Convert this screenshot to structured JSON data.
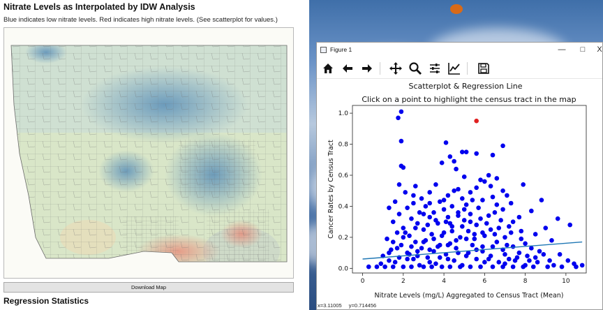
{
  "app": {
    "title": "Nitrate Levels as Interpolated by IDW Analysis",
    "subtitle": "Blue indicates low nitrate levels. Red indicates high nitrate levels. (See scatterplot for values.)",
    "download_label": "Download Map",
    "regression_heading": "Regression Statistics"
  },
  "figure_window": {
    "title": "Figure 1",
    "controls": {
      "minimize": "—",
      "maximize": "□",
      "close": "X"
    },
    "toolbar": [
      "home-icon",
      "back-arrow-icon",
      "forward-arrow-icon",
      "pan-icon",
      "zoom-icon",
      "configure-subplots-icon",
      "edit-axis-icon",
      "save-icon"
    ],
    "coord_x": "x=3.11005",
    "coord_y": "y=0.714456"
  },
  "colors": {
    "points": "#0000ee",
    "highlight": "#e02020",
    "regression": "#1f77b4"
  },
  "chart_data": {
    "type": "scatter",
    "title": "Scatterplot & Regression Line",
    "subtitle": "Click on a point to highlight the census tract in the map",
    "xlabel": "Nitrate Levels (mg/L) Aggregated to Census Tract (Mean)",
    "ylabel": "Cancer Rates by Census Tract",
    "xlim": [
      -0.5,
      11.0
    ],
    "ylim": [
      -0.03,
      1.05
    ],
    "xticks": [
      0,
      2,
      4,
      6,
      8,
      10
    ],
    "yticks": [
      0.0,
      0.2,
      0.4,
      0.6,
      0.8,
      1.0
    ],
    "highlight_point": {
      "x": 5.6,
      "y": 0.95
    },
    "regression": {
      "x": [
        0,
        10.8
      ],
      "y": [
        0.06,
        0.17
      ]
    },
    "points": [
      [
        1.9,
        1.01
      ],
      [
        1.75,
        0.97
      ],
      [
        1.9,
        0.82
      ],
      [
        4.1,
        0.81
      ],
      [
        6.9,
        0.79
      ],
      [
        4.9,
        0.75
      ],
      [
        5.1,
        0.75
      ],
      [
        5.6,
        0.74
      ],
      [
        6.4,
        0.73
      ],
      [
        4.3,
        0.72
      ],
      [
        4.5,
        0.69
      ],
      [
        3.9,
        0.68
      ],
      [
        1.9,
        0.66
      ],
      [
        2.0,
        0.65
      ],
      [
        4.6,
        0.64
      ],
      [
        6.2,
        0.6
      ],
      [
        5.0,
        0.59
      ],
      [
        6.6,
        0.58
      ],
      [
        5.8,
        0.57
      ],
      [
        6.0,
        0.56
      ],
      [
        3.6,
        0.54
      ],
      [
        1.8,
        0.54
      ],
      [
        7.9,
        0.54
      ],
      [
        5.6,
        0.52
      ],
      [
        6.3,
        0.53
      ],
      [
        2.6,
        0.53
      ],
      [
        4.7,
        0.51
      ],
      [
        6.9,
        0.5
      ],
      [
        5.3,
        0.49
      ],
      [
        3.3,
        0.49
      ],
      [
        2.1,
        0.49
      ],
      [
        7.1,
        0.47
      ],
      [
        4.2,
        0.47
      ],
      [
        6.4,
        0.46
      ],
      [
        2.9,
        0.45
      ],
      [
        4.9,
        0.45
      ],
      [
        8.8,
        0.44
      ],
      [
        5.9,
        0.44
      ],
      [
        3.8,
        0.43
      ],
      [
        1.6,
        0.43
      ],
      [
        7.3,
        0.42
      ],
      [
        2.5,
        0.42
      ],
      [
        5.1,
        0.41
      ],
      [
        6.6,
        0.41
      ],
      [
        4.4,
        0.4
      ],
      [
        3.1,
        0.4
      ],
      [
        1.3,
        0.39
      ],
      [
        2.2,
        0.39
      ],
      [
        5.7,
        0.39
      ],
      [
        6.9,
        0.38
      ],
      [
        4.0,
        0.38
      ],
      [
        8.3,
        0.37
      ],
      [
        3.5,
        0.36
      ],
      [
        2.8,
        0.36
      ],
      [
        5.3,
        0.35
      ],
      [
        1.8,
        0.35
      ],
      [
        6.2,
        0.34
      ],
      [
        4.7,
        0.34
      ],
      [
        7.7,
        0.33
      ],
      [
        3.3,
        0.33
      ],
      [
        2.4,
        0.32
      ],
      [
        9.6,
        0.32
      ],
      [
        5.0,
        0.31
      ],
      [
        6.8,
        0.31
      ],
      [
        4.1,
        0.3
      ],
      [
        1.5,
        0.3
      ],
      [
        10.2,
        0.28
      ],
      [
        3.7,
        0.29
      ],
      [
        2.7,
        0.29
      ],
      [
        5.6,
        0.28
      ],
      [
        7.2,
        0.27
      ],
      [
        4.4,
        0.27
      ],
      [
        9.0,
        0.26
      ],
      [
        2.0,
        0.26
      ],
      [
        3.0,
        0.25
      ],
      [
        6.3,
        0.25
      ],
      [
        5.2,
        0.24
      ],
      [
        7.8,
        0.24
      ],
      [
        1.7,
        0.23
      ],
      [
        4.0,
        0.23
      ],
      [
        8.5,
        0.22
      ],
      [
        3.4,
        0.22
      ],
      [
        6.0,
        0.21
      ],
      [
        2.3,
        0.21
      ],
      [
        4.8,
        0.2
      ],
      [
        7.0,
        0.2
      ],
      [
        1.2,
        0.19
      ],
      [
        5.5,
        0.19
      ],
      [
        3.1,
        0.18
      ],
      [
        9.3,
        0.18
      ],
      [
        6.6,
        0.17
      ],
      [
        2.6,
        0.17
      ],
      [
        4.3,
        0.16
      ],
      [
        8.0,
        0.16
      ],
      [
        3.8,
        0.15
      ],
      [
        1.9,
        0.15
      ],
      [
        5.9,
        0.14
      ],
      [
        7.4,
        0.14
      ],
      [
        2.9,
        0.13
      ],
      [
        4.6,
        0.13
      ],
      [
        6.9,
        0.12
      ],
      [
        1.4,
        0.12
      ],
      [
        3.5,
        0.11
      ],
      [
        8.7,
        0.11
      ],
      [
        5.2,
        0.1
      ],
      [
        2.2,
        0.1
      ],
      [
        9.7,
        0.09
      ],
      [
        4.1,
        0.09
      ],
      [
        6.3,
        0.08
      ],
      [
        1.0,
        0.08
      ],
      [
        3.2,
        0.07
      ],
      [
        7.6,
        0.07
      ],
      [
        5.6,
        0.06
      ],
      [
        2.5,
        0.06
      ],
      [
        4.5,
        0.05
      ],
      [
        8.2,
        0.05
      ],
      [
        1.6,
        0.04
      ],
      [
        6.0,
        0.04
      ],
      [
        3.6,
        0.03
      ],
      [
        10.4,
        0.03
      ],
      [
        7.0,
        0.03
      ],
      [
        2.8,
        0.02
      ],
      [
        4.9,
        0.02
      ],
      [
        0.3,
        0.01
      ],
      [
        0.7,
        0.01
      ],
      [
        1.1,
        0.01
      ],
      [
        1.5,
        0.01
      ],
      [
        2.0,
        0.01
      ],
      [
        2.4,
        0.01
      ],
      [
        3.0,
        0.01
      ],
      [
        3.4,
        0.01
      ],
      [
        3.9,
        0.01
      ],
      [
        4.3,
        0.01
      ],
      [
        4.8,
        0.01
      ],
      [
        5.3,
        0.01
      ],
      [
        5.8,
        0.01
      ],
      [
        6.4,
        0.01
      ],
      [
        6.9,
        0.01
      ],
      [
        7.4,
        0.01
      ],
      [
        7.9,
        0.01
      ],
      [
        8.4,
        0.01
      ],
      [
        9.1,
        0.01
      ],
      [
        9.8,
        0.01
      ],
      [
        10.5,
        0.01
      ],
      [
        10.8,
        0.02
      ],
      [
        0.9,
        0.03
      ],
      [
        1.3,
        0.05
      ],
      [
        1.8,
        0.07
      ],
      [
        2.3,
        0.09
      ],
      [
        2.7,
        0.11
      ],
      [
        3.3,
        0.12
      ],
      [
        3.7,
        0.14
      ],
      [
        4.2,
        0.15
      ],
      [
        4.6,
        0.18
      ],
      [
        5.1,
        0.19
      ],
      [
        5.5,
        0.22
      ],
      [
        5.9,
        0.23
      ],
      [
        6.5,
        0.22
      ],
      [
        7.1,
        0.15
      ],
      [
        7.7,
        0.1
      ],
      [
        8.1,
        0.08
      ],
      [
        8.6,
        0.04
      ],
      [
        9.4,
        0.02
      ],
      [
        10.1,
        0.05
      ],
      [
        2.1,
        0.23
      ],
      [
        2.6,
        0.26
      ],
      [
        3.2,
        0.28
      ],
      [
        3.6,
        0.31
      ],
      [
        4.2,
        0.33
      ],
      [
        4.7,
        0.36
      ],
      [
        5.3,
        0.3
      ],
      [
        5.8,
        0.32
      ],
      [
        6.1,
        0.29
      ],
      [
        6.7,
        0.26
      ],
      [
        7.3,
        0.23
      ],
      [
        7.8,
        0.19
      ],
      [
        8.3,
        0.13
      ],
      [
        8.9,
        0.09
      ],
      [
        1.5,
        0.17
      ],
      [
        2.0,
        0.2
      ],
      [
        2.4,
        0.14
      ],
      [
        3.0,
        0.17
      ],
      [
        3.5,
        0.19
      ],
      [
        3.9,
        0.21
      ],
      [
        4.4,
        0.24
      ],
      [
        4.9,
        0.27
      ],
      [
        5.4,
        0.15
      ],
      [
        5.9,
        0.11
      ],
      [
        6.4,
        0.14
      ],
      [
        7.0,
        0.09
      ],
      [
        7.5,
        0.05
      ],
      [
        1.3,
        0.1
      ],
      [
        1.7,
        0.13
      ],
      [
        2.2,
        0.06
      ],
      [
        2.7,
        0.08
      ],
      [
        3.3,
        0.04
      ],
      [
        3.8,
        0.07
      ],
      [
        4.2,
        0.06
      ],
      [
        4.7,
        0.1
      ],
      [
        5.1,
        0.08
      ],
      [
        5.6,
        0.12
      ],
      [
        6.2,
        0.06
      ],
      [
        6.7,
        0.04
      ],
      [
        7.2,
        0.06
      ],
      [
        8.0,
        0.02
      ],
      [
        8.5,
        0.07
      ],
      [
        9.2,
        0.05
      ],
      [
        4.0,
        0.44
      ],
      [
        4.5,
        0.5
      ],
      [
        5.4,
        0.44
      ],
      [
        3.3,
        0.42
      ],
      [
        2.5,
        0.47
      ],
      [
        6.5,
        0.36
      ],
      [
        7.4,
        0.3
      ],
      [
        5.0,
        0.38
      ],
      [
        3.0,
        0.35
      ],
      [
        4.3,
        0.29
      ]
    ]
  }
}
